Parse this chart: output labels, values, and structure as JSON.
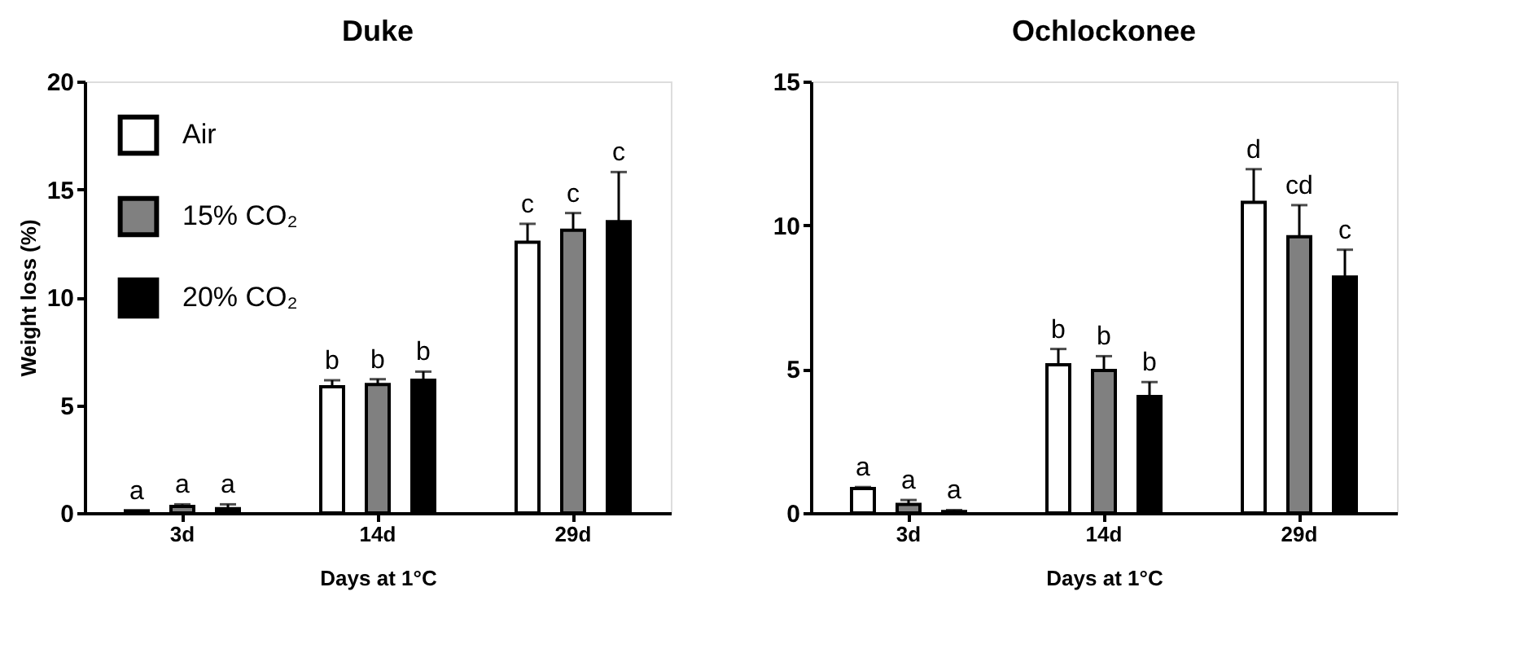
{
  "chart_data": [
    {
      "type": "bar",
      "title": "Duke",
      "xlabel": "Days at 1°C",
      "ylabel": "Weight loss (%)",
      "categories": [
        "3d",
        "14d",
        "29d"
      ],
      "ylim": [
        0,
        20
      ],
      "yticks": [
        0,
        5,
        10,
        15,
        20
      ],
      "grid": false,
      "legend": "top left",
      "series": [
        {
          "name": "Air",
          "color": "#ffffff",
          "values": [
            0.1,
            5.85,
            12.55
          ],
          "errors": [
            null,
            [
              5.85,
              6.15
            ],
            [
              12.55,
              13.4
            ]
          ],
          "value_labels": [
            "a",
            "b",
            "c"
          ]
        },
        {
          "name": "15% CO₂",
          "color": "#808080",
          "values": [
            0.3,
            5.95,
            13.1
          ],
          "errors": [
            [
              0.3,
              0.4
            ],
            [
              5.95,
              6.2
            ],
            [
              13.1,
              13.9
            ]
          ],
          "value_labels": [
            "a",
            "b",
            "c"
          ]
        },
        {
          "name": "20% CO₂",
          "color": "#000000",
          "values": [
            0.2,
            6.15,
            13.5
          ],
          "errors": [
            [
              0.2,
              0.4
            ],
            [
              6.15,
              6.55
            ],
            [
              13.5,
              15.8
            ]
          ],
          "value_labels": [
            "a",
            "b",
            "c"
          ]
        }
      ]
    },
    {
      "type": "bar",
      "title": "Ochlockonee",
      "xlabel": "Days at 1°C",
      "categories": [
        "3d",
        "14d",
        "29d"
      ],
      "ylim": [
        0,
        15
      ],
      "yticks": [
        0,
        5,
        10,
        15
      ],
      "grid": false,
      "series": [
        {
          "color": "#ffffff",
          "values": [
            0.85,
            5.15,
            10.8
          ],
          "errors": [
            [
              0.85,
              0.9
            ],
            [
              5.15,
              5.7
            ],
            [
              10.8,
              11.95
            ]
          ],
          "value_labels": [
            "a",
            "b",
            "d"
          ]
        },
        {
          "color": "#808080",
          "values": [
            0.3,
            4.95,
            9.6
          ],
          "errors": [
            [
              0.3,
              0.45
            ],
            [
              4.95,
              5.45
            ],
            [
              9.6,
              10.7
            ]
          ],
          "value_labels": [
            "a",
            "b",
            "cd"
          ]
        },
        {
          "color": "#000000",
          "values": [
            0.05,
            4.05,
            8.2
          ],
          "errors": [
            [
              0.05,
              0.1
            ],
            [
              4.05,
              4.55
            ],
            [
              8.2,
              9.15
            ]
          ],
          "value_labels": [
            "a",
            "b",
            "c"
          ]
        }
      ]
    }
  ]
}
